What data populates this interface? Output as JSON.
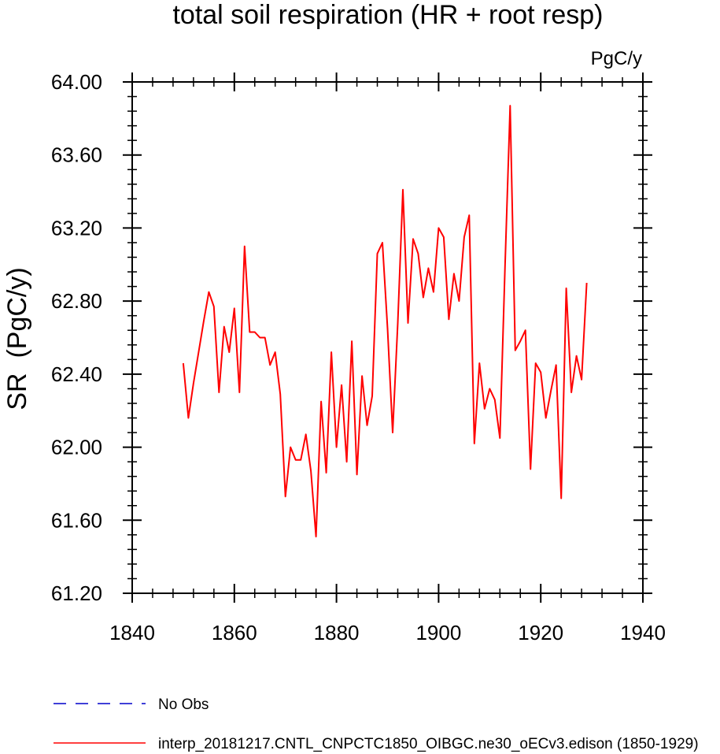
{
  "chart_data": {
    "type": "line",
    "title": "total soil respiration (HR + root resp)",
    "units": "PgC/y",
    "ylabel": "SR  (PgC/y)",
    "xlabel": "",
    "xlim": [
      1840,
      1940
    ],
    "ylim": [
      61.2,
      64.0
    ],
    "xticks": [
      1840,
      1860,
      1880,
      1900,
      1920,
      1940
    ],
    "xtick_labels": [
      "1840",
      "1860",
      "1880",
      "1900",
      "1920",
      "1940"
    ],
    "yticks": [
      61.2,
      61.6,
      62.0,
      62.4,
      62.8,
      63.2,
      63.6,
      64.0
    ],
    "ytick_labels": [
      "61.20",
      "61.60",
      "62.00",
      "62.40",
      "62.80",
      "63.20",
      "63.60",
      "64.00"
    ],
    "grid": false,
    "legend_position": "bottom-left",
    "series": [
      {
        "name": "interp_20181217.CNTL_CNPCTC1850_OIBGC.ne30_oECv3.edison (1850-1929)",
        "color": "#ff0000",
        "dash": "solid",
        "x": [
          1850,
          1851,
          1852,
          1853,
          1854,
          1855,
          1856,
          1857,
          1858,
          1859,
          1860,
          1861,
          1862,
          1863,
          1864,
          1865,
          1866,
          1867,
          1868,
          1869,
          1870,
          1871,
          1872,
          1873,
          1874,
          1875,
          1876,
          1877,
          1878,
          1879,
          1880,
          1881,
          1882,
          1883,
          1884,
          1885,
          1886,
          1887,
          1888,
          1889,
          1890,
          1891,
          1892,
          1893,
          1894,
          1895,
          1896,
          1897,
          1898,
          1899,
          1900,
          1901,
          1902,
          1903,
          1904,
          1905,
          1906,
          1907,
          1908,
          1909,
          1910,
          1911,
          1912,
          1913,
          1914,
          1915,
          1916,
          1917,
          1918,
          1919,
          1920,
          1921,
          1922,
          1923,
          1924,
          1925,
          1926,
          1927,
          1928,
          1929
        ],
        "values": [
          62.46,
          62.16,
          62.35,
          62.52,
          62.69,
          62.85,
          62.77,
          62.3,
          62.66,
          62.52,
          62.76,
          62.3,
          63.1,
          62.63,
          62.63,
          62.6,
          62.6,
          62.45,
          62.52,
          62.29,
          61.73,
          62.0,
          61.93,
          61.93,
          62.07,
          61.87,
          61.51,
          62.25,
          61.86,
          62.52,
          62.0,
          62.34,
          61.92,
          62.58,
          61.85,
          62.39,
          62.12,
          62.28,
          63.06,
          63.12,
          62.65,
          62.08,
          62.68,
          63.41,
          62.68,
          63.14,
          63.06,
          62.82,
          62.98,
          62.85,
          63.2,
          63.15,
          62.7,
          62.95,
          62.8,
          63.15,
          63.27,
          62.02,
          62.46,
          62.21,
          62.32,
          62.26,
          62.05,
          62.99,
          63.87,
          62.53,
          62.58,
          62.64,
          61.88,
          62.46,
          62.41,
          62.16,
          62.31,
          62.45,
          61.72,
          62.87,
          62.3,
          62.5,
          62.37,
          62.9
        ]
      }
    ],
    "legend": [
      {
        "label": "No Obs",
        "color": "#0000cc",
        "dash": "dashed"
      },
      {
        "label": "interp_20181217.CNTL_CNPCTC1850_OIBGC.ne30_oECv3.edison (1850-1929)",
        "color": "#ff0000",
        "dash": "solid"
      }
    ]
  }
}
